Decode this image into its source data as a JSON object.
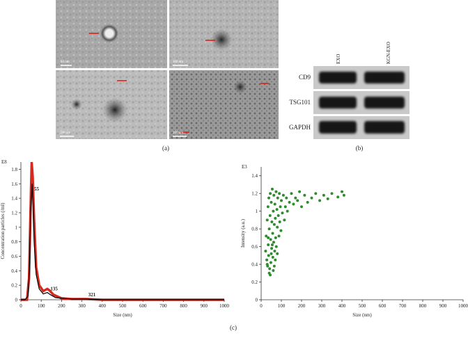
{
  "figure": {
    "panel_a": {
      "label": "(a)",
      "scale_bars": [
        "50 nm",
        "100 nm",
        "200 nm",
        "200 nm"
      ]
    },
    "panel_b": {
      "label": "(b)",
      "lanes": [
        "EXO",
        "KGN-EXO"
      ],
      "rows": [
        "CD9",
        "TSG101",
        "GAPDH"
      ]
    },
    "panel_c": {
      "label": "(c)"
    }
  },
  "chart_data": [
    {
      "type": "line",
      "y_unit": "E8",
      "xlabel": "Size (nm)",
      "ylabel": "Concentration particles (/ml)",
      "xlim": [
        0,
        1000
      ],
      "xticks": [
        0,
        100,
        200,
        300,
        400,
        500,
        600,
        700,
        800,
        900,
        1000
      ],
      "ylim": [
        0,
        1.9
      ],
      "yticks": [
        0,
        0.2,
        0.4,
        0.6,
        0.8,
        1,
        1.2,
        1.4,
        1.6,
        1.8
      ],
      "series": [
        {
          "color": "#d42a20",
          "x": [
            0,
            30,
            40,
            47,
            53,
            58,
            65,
            75,
            90,
            110,
            130,
            140,
            160,
            200,
            250,
            321,
            400,
            1000
          ],
          "values": [
            0,
            0,
            0.3,
            1.2,
            1.9,
            1.7,
            1.1,
            0.45,
            0.2,
            0.12,
            0.15,
            0.13,
            0.07,
            0.02,
            0.01,
            0.01,
            0,
            0
          ]
        },
        {
          "color": "#000000",
          "x": [
            0,
            20,
            35,
            42,
            48,
            55,
            60,
            65,
            75,
            90,
            110,
            130,
            145,
            170,
            200,
            250,
            321,
            400,
            1000
          ],
          "values": [
            0,
            0,
            0.05,
            0.4,
            1.2,
            1.6,
            1.3,
            0.8,
            0.35,
            0.15,
            0.08,
            0.1,
            0.07,
            0.03,
            0.02,
            0.01,
            0.01,
            0,
            0
          ]
        }
      ],
      "annotations": [
        {
          "label": "55",
          "x": 55,
          "y": 1.48
        },
        {
          "label": "135",
          "x": 135,
          "y": 0.1
        },
        {
          "label": "321",
          "x": 321,
          "y": 0.02
        }
      ]
    },
    {
      "type": "scatter",
      "y_unit": "E3",
      "xlabel": "Size (nm)",
      "ylabel": "Intensity (a.u.)",
      "color": "#2e8b2e",
      "xlim": [
        0,
        1000
      ],
      "xticks": [
        0,
        100,
        200,
        300,
        400,
        500,
        600,
        700,
        800,
        900,
        1000
      ],
      "ylim": [
        0,
        1.5
      ],
      "yticks": [
        0,
        0.2,
        0.4,
        0.6,
        0.8,
        1,
        1.2,
        1.4
      ],
      "x": [
        22,
        25,
        28,
        30,
        32,
        34,
        35,
        37,
        38,
        40,
        42,
        44,
        45,
        47,
        48,
        50,
        52,
        53,
        55,
        57,
        58,
        60,
        62,
        63,
        65,
        67,
        68,
        70,
        72,
        74,
        75,
        78,
        80,
        82,
        85,
        88,
        90,
        92,
        95,
        98,
        100,
        105,
        110,
        115,
        120,
        125,
        130,
        140,
        150,
        160,
        170,
        180,
        190,
        200,
        215,
        230,
        250,
        270,
        290,
        310,
        330,
        350,
        380,
        400,
        410,
        30,
        40,
        50,
        60,
        70,
        45,
        55,
        65,
        35,
        80
      ],
      "values": [
        0.55,
        0.72,
        0.45,
        0.9,
        0.38,
        1.05,
        0.62,
        0.5,
        1.15,
        0.8,
        0.35,
        0.95,
        1.2,
        0.68,
        0.42,
        1.1,
        0.58,
        0.88,
        1.25,
        0.75,
        0.48,
        1.0,
        0.65,
        1.18,
        0.85,
        0.55,
        1.08,
        0.92,
        0.7,
        1.22,
        0.6,
        1.02,
        0.82,
        1.15,
        0.95,
        0.72,
        1.2,
        0.88,
        1.05,
        0.78,
        1.12,
        0.98,
        1.18,
        0.9,
        1.05,
        1.15,
        1.0,
        1.1,
        1.2,
        1.08,
        1.15,
        1.12,
        1.22,
        1.05,
        1.18,
        1.1,
        1.15,
        1.2,
        1.12,
        1.18,
        1.14,
        1.2,
        1.16,
        1.22,
        1.18,
        0.4,
        0.3,
        0.52,
        0.33,
        0.45,
        0.28,
        0.62,
        0.38,
        0.7,
        0.52
      ]
    }
  ]
}
